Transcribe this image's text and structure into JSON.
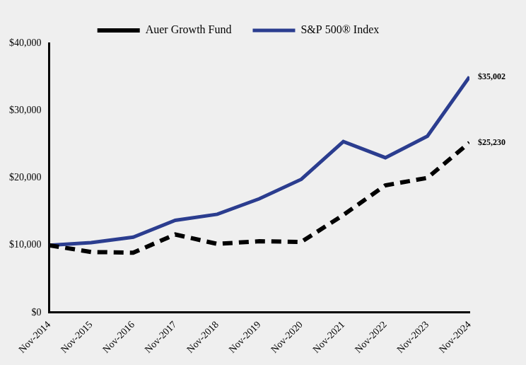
{
  "chart_data": {
    "type": "line",
    "categories": [
      "Nov-2014",
      "Nov-2015",
      "Nov-2016",
      "Nov-2017",
      "Nov-2018",
      "Nov-2019",
      "Nov-2020",
      "Nov-2021",
      "Nov-2022",
      "Nov-2023",
      "Nov-2024"
    ],
    "series": [
      {
        "name": "Auer Growth Fund",
        "color": "#000000",
        "line_style": "dashed",
        "values": [
          10000,
          9000,
          8900,
          11600,
          10200,
          10600,
          10500,
          14500,
          18900,
          20000,
          25230
        ]
      },
      {
        "name": "S&P 500® Index",
        "color": "#2b3d8f",
        "line_style": "solid",
        "values": [
          10000,
          10400,
          11200,
          13700,
          14600,
          16900,
          19800,
          25400,
          23000,
          26200,
          35002
        ]
      }
    ],
    "ylim": [
      0,
      40000
    ],
    "yticks": [
      {
        "value": 0,
        "label": "$0"
      },
      {
        "value": 10000,
        "label": "$10,000"
      },
      {
        "value": 20000,
        "label": "$20,000"
      },
      {
        "value": 30000,
        "label": "$30,000"
      },
      {
        "value": 40000,
        "label": "$40,000"
      }
    ],
    "grid": false,
    "legend": "top",
    "annotations": [
      {
        "text": "$35,002",
        "x": "Nov-2024",
        "y": 35002
      },
      {
        "text": "$25,230",
        "x": "Nov-2024",
        "y": 25230
      }
    ]
  }
}
